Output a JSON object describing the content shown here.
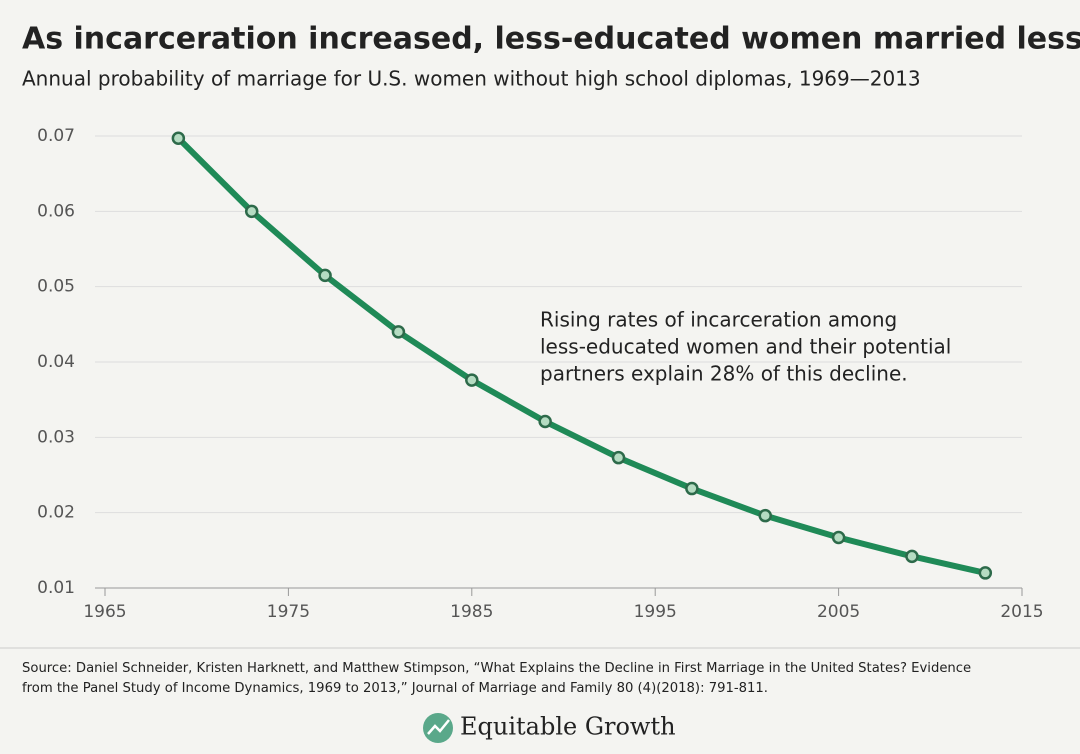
{
  "chart_data": {
    "type": "line",
    "title": "As incarceration increased, less-educated women married less",
    "subtitle": "Annual probability of marriage for U.S. women without high school diplomas, 1969—2013",
    "x": [
      1969,
      1973,
      1977,
      1981,
      1985,
      1989,
      1993,
      1997,
      2001,
      2005,
      2009,
      2013
    ],
    "series": [
      {
        "name": "Annual probability of marriage",
        "color": "#1f8a57",
        "values": [
          0.0697,
          0.06,
          0.0515,
          0.044,
          0.0376,
          0.0321,
          0.0273,
          0.0232,
          0.0196,
          0.0167,
          0.0142,
          0.012
        ]
      }
    ],
    "xlim": [
      1965,
      2015
    ],
    "xticks": [
      1965,
      1975,
      1985,
      1995,
      2005,
      2015
    ],
    "ylim": [
      0.01,
      0.07
    ],
    "yticks": [
      0.01,
      0.02,
      0.03,
      0.04,
      0.05,
      0.06,
      0.07
    ],
    "grid": true,
    "annotation": [
      "Rising rates of incarceration among",
      "less-educated women and their potential",
      "partners explain 28% of this decline."
    ],
    "source": [
      "Source: Daniel Schneider, Kristen Harknett, and Matthew Stimpson, “What Explains the Decline in First Marriage in the United States? Evidence",
      "from the Panel Study of Income Dynamics, 1969 to 2013,” Journal of Marriage and Family 80 (4)(2018): 791-811."
    ],
    "brand": "Equitable Growth"
  }
}
